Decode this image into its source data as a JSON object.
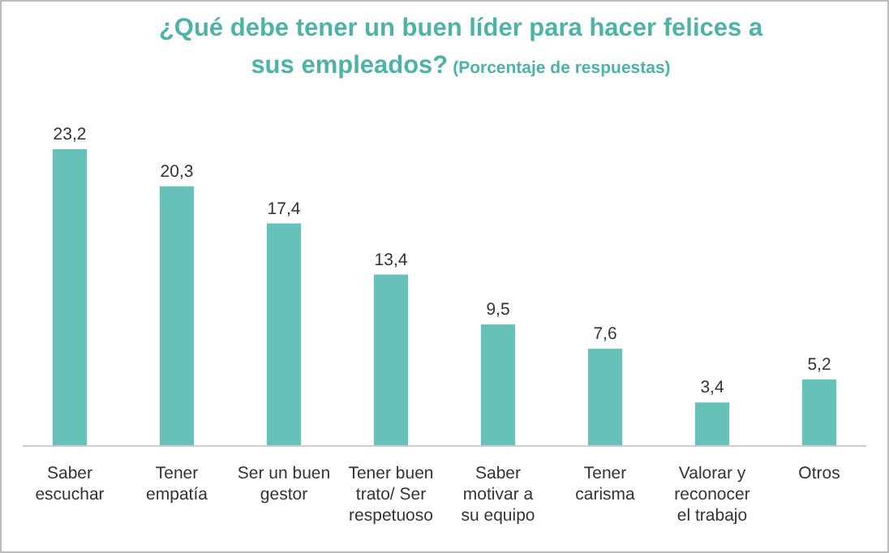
{
  "chart_data": {
    "type": "bar",
    "title": "¿Qué debe tener un buen líder para hacer felices a sus empleados?",
    "subtitle": "(Porcentaje de respuestas)",
    "categories": [
      "Saber escuchar",
      "Tener empatía",
      "Ser un buen gestor",
      "Tener buen trato/ Ser respetuoso",
      "Saber motivar a su equipo",
      "Tener carisma",
      "Valorar y reconocer el trabajo",
      "Otros"
    ],
    "values": [
      23.2,
      20.3,
      17.4,
      13.4,
      9.5,
      7.6,
      3.4,
      5.2
    ],
    "value_labels": [
      "23,2",
      "20,3",
      "17,4",
      "13,4",
      "9,5",
      "7,6",
      "3,4",
      "5,2"
    ],
    "color": "#66c2b8"
  }
}
